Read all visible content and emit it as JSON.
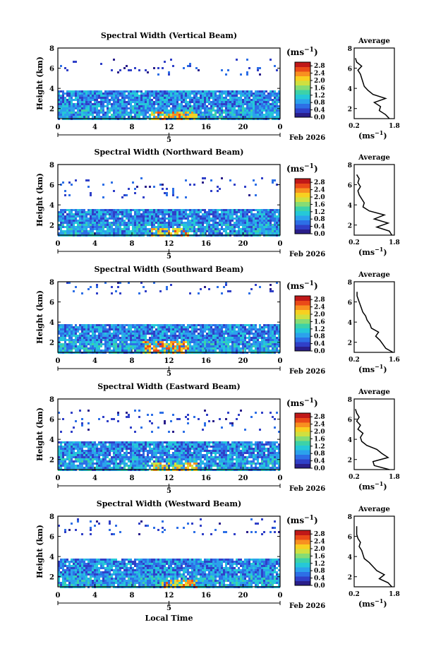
{
  "figure": {
    "xlabel": "Local Time",
    "ylabel": "Height (km)",
    "unit_label": "(ms",
    "unit_sup": "−1",
    "avg_title": "Average",
    "date_label": "Feb 2026",
    "day_label": "5"
  },
  "colors": {
    "scale": [
      "#2a1e8a",
      "#3040c8",
      "#2d6fe6",
      "#2ba2ec",
      "#25c8d8",
      "#3dd2a8",
      "#86dc74",
      "#d0e040",
      "#f8d020",
      "#f89020",
      "#ea4a18",
      "#c01818"
    ],
    "profile_line": "#000000"
  },
  "chart_data": [
    {
      "type": "heatmap",
      "title": "Spectral Width (Vertical Beam)",
      "x_ticks": [
        "0",
        "4",
        "8",
        "12",
        "16",
        "20",
        "0"
      ],
      "y_ticks": [
        "2",
        "4",
        "6",
        "8"
      ],
      "colorbar_ticks": [
        "0.0",
        "0.4",
        "0.8",
        "1.2",
        "1.6",
        "2.0",
        "2.4",
        "2.8"
      ],
      "xlim": [
        0,
        24
      ],
      "ylim": [
        1,
        8
      ],
      "clim": [
        0.0,
        3.0
      ],
      "layer_top_km": 4.0,
      "upper_echo_km": [
        5.4,
        7.0
      ],
      "hot_patch": {
        "x_hours": [
          10,
          15
        ],
        "km": [
          1.0,
          1.9
        ],
        "value": 2.6
      },
      "average_profile": {
        "title": "Average",
        "xlim": [
          0.2,
          1.8
        ],
        "x_ticks": [
          "0.2",
          "1.8"
        ],
        "y_ticks": [
          "2",
          "4",
          "6",
          "8"
        ],
        "height_km": [
          1.0,
          1.4,
          1.8,
          2.2,
          2.6,
          3.0,
          3.4,
          3.8,
          4.2,
          4.6,
          5.0,
          5.4,
          5.8,
          6.2,
          6.6,
          7.0
        ],
        "value": [
          1.6,
          1.45,
          1.2,
          1.25,
          1.0,
          1.45,
          0.95,
          0.75,
          0.6,
          0.55,
          0.5,
          0.45,
          0.35,
          0.5,
          0.3,
          0.25
        ]
      }
    },
    {
      "type": "heatmap",
      "title": "Spectral Width (Northward Beam)",
      "x_ticks": [
        "0",
        "4",
        "8",
        "12",
        "16",
        "20",
        "0"
      ],
      "y_ticks": [
        "2",
        "4",
        "6",
        "8"
      ],
      "colorbar_ticks": [
        "0.0",
        "0.4",
        "0.8",
        "1.2",
        "1.6",
        "2.0",
        "2.4",
        "2.8"
      ],
      "xlim": [
        0,
        24
      ],
      "ylim": [
        1,
        8
      ],
      "clim": [
        0.0,
        3.0
      ],
      "layer_top_km": 3.6,
      "upper_echo_km": [
        4.8,
        6.8
      ],
      "hot_patch": {
        "x_hours": [
          10,
          14
        ],
        "km": [
          1.0,
          1.9
        ],
        "value": 2.6
      },
      "average_profile": {
        "title": "Average",
        "xlim": [
          0.2,
          1.8
        ],
        "x_ticks": [
          "0.2",
          "1.8"
        ],
        "y_ticks": [
          "2",
          "4",
          "6",
          "8"
        ],
        "height_km": [
          1.0,
          1.4,
          1.8,
          2.2,
          2.6,
          3.0,
          3.4,
          3.8,
          4.2,
          4.6,
          5.0,
          5.4,
          5.8,
          6.2,
          6.6,
          7.0
        ],
        "value": [
          1.7,
          1.6,
          1.1,
          1.55,
          1.0,
          1.4,
          0.8,
          0.55,
          0.6,
          0.5,
          0.4,
          0.35,
          0.45,
          0.35,
          0.4,
          0.3
        ]
      }
    },
    {
      "type": "heatmap",
      "title": "Spectral Width (Southward Beam)",
      "x_ticks": [
        "0",
        "4",
        "8",
        "12",
        "16",
        "20",
        "0"
      ],
      "y_ticks": [
        "2",
        "4",
        "6",
        "8"
      ],
      "colorbar_ticks": [
        "0.0",
        "0.4",
        "0.8",
        "1.2",
        "1.6",
        "2.0",
        "2.4",
        "2.8"
      ],
      "xlim": [
        0,
        24
      ],
      "ylim": [
        1,
        8
      ],
      "clim": [
        0.0,
        3.0
      ],
      "layer_top_km": 3.8,
      "upper_echo_km": [
        6.8,
        8.0
      ],
      "hot_patch": {
        "x_hours": [
          9,
          14
        ],
        "km": [
          1.0,
          2.2
        ],
        "value": 2.7
      },
      "average_profile": {
        "title": "Average",
        "xlim": [
          0.2,
          1.6
        ],
        "x_ticks": [
          "0.2",
          "1.6"
        ],
        "y_ticks": [
          "2",
          "4",
          "6",
          "8"
        ],
        "height_km": [
          1.0,
          1.4,
          1.8,
          2.2,
          2.6,
          3.0,
          3.4,
          3.8,
          4.2,
          4.6,
          5.0,
          5.4,
          5.8,
          6.2,
          6.6,
          7.0
        ],
        "value": [
          1.55,
          1.3,
          1.2,
          1.1,
          0.95,
          1.05,
          0.8,
          0.75,
          0.65,
          0.6,
          0.5,
          0.45,
          0.4,
          0.35,
          0.3,
          0.3
        ]
      }
    },
    {
      "type": "heatmap",
      "title": "Spectral Width (Eastward Beam)",
      "x_ticks": [
        "0",
        "4",
        "8",
        "12",
        "16",
        "20",
        "0"
      ],
      "y_ticks": [
        "2",
        "4",
        "6",
        "8"
      ],
      "colorbar_ticks": [
        "0.0",
        "0.4",
        "0.8",
        "1.2",
        "1.6",
        "2.0",
        "2.4",
        "2.8"
      ],
      "xlim": [
        0,
        24
      ],
      "ylim": [
        1,
        8
      ],
      "clim": [
        0.0,
        3.0
      ],
      "layer_top_km": 3.8,
      "upper_echo_km": [
        4.8,
        7.0
      ],
      "hot_patch": {
        "x_hours": [
          10,
          15
        ],
        "km": [
          1.0,
          1.8
        ],
        "value": 2.5
      },
      "average_profile": {
        "title": "Average",
        "xlim": [
          0.2,
          1.8
        ],
        "x_ticks": [
          "0.2",
          "1.8"
        ],
        "y_ticks": [
          "2",
          "4",
          "6",
          "8"
        ],
        "height_km": [
          1.0,
          1.4,
          1.8,
          2.2,
          2.6,
          3.0,
          3.4,
          3.8,
          4.2,
          4.6,
          5.0,
          5.4,
          5.8,
          6.2,
          6.6,
          7.0
        ],
        "value": [
          1.6,
          1.0,
          0.95,
          1.55,
          1.3,
          1.1,
          0.7,
          0.5,
          0.45,
          0.55,
          0.35,
          0.45,
          0.3,
          0.4,
          0.3,
          0.25
        ]
      }
    },
    {
      "type": "heatmap",
      "title": "Spectral Width (Westward Beam)",
      "x_ticks": [
        "0",
        "4",
        "8",
        "12",
        "16",
        "20",
        "0"
      ],
      "y_ticks": [
        "2",
        "4",
        "6",
        "8"
      ],
      "colorbar_ticks": [
        "0.0",
        "0.4",
        "0.8",
        "1.2",
        "1.6",
        "2.0",
        "2.4",
        "2.8"
      ],
      "xlim": [
        0,
        24
      ],
      "ylim": [
        1,
        8
      ],
      "clim": [
        0.0,
        3.0
      ],
      "layer_top_km": 3.8,
      "upper_echo_km": [
        6.2,
        7.8
      ],
      "hot_patch": {
        "x_hours": [
          11,
          15
        ],
        "km": [
          1.0,
          1.8
        ],
        "value": 2.6
      },
      "average_profile": {
        "title": "Average",
        "xlim": [
          0.2,
          1.8
        ],
        "x_ticks": [
          "0.2",
          "1.8"
        ],
        "y_ticks": [
          "2",
          "4",
          "6",
          "8"
        ],
        "height_km": [
          1.0,
          1.4,
          1.8,
          2.2,
          2.6,
          3.0,
          3.4,
          3.8,
          4.2,
          4.6,
          5.0,
          5.4,
          5.8,
          6.2,
          6.6,
          7.0
        ],
        "value": [
          1.7,
          1.55,
          1.2,
          1.4,
          1.1,
          0.95,
          0.8,
          0.6,
          0.55,
          0.5,
          0.4,
          0.45,
          0.35,
          0.3,
          0.3,
          0.3
        ]
      }
    }
  ]
}
